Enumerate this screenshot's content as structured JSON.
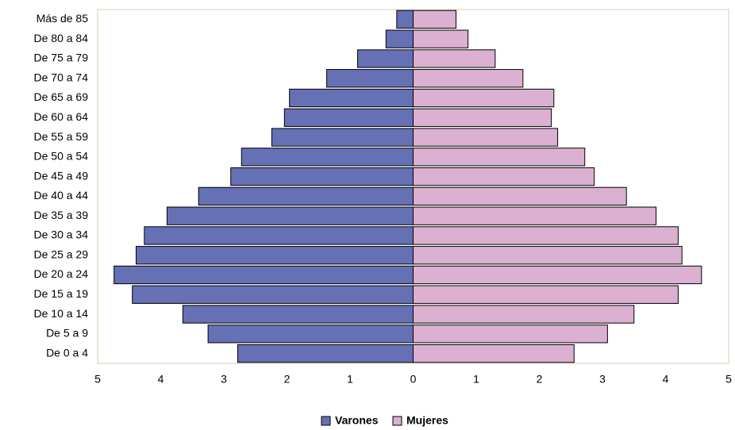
{
  "chart_data": {
    "type": "bar",
    "orientation": "horizontal",
    "categories": [
      "Más de 85",
      "De 80 a 84",
      "De 75 a 79",
      "De 70 a 74",
      "De 65 a 69",
      "De 60 a 64",
      "De 55 a 59",
      "De 50 a 54",
      "De 45 a 49",
      "De 40 a 44",
      "De 35 a 39",
      "De 30 a 34",
      "De 25 a 29",
      "De 20 a 24",
      "De 15 a 19",
      "De 10 a 14",
      "De 5 a 9",
      "De 0 a 4"
    ],
    "series": [
      {
        "name": "Varones",
        "color": "#6670b5",
        "values": [
          -0.26,
          -0.43,
          -0.88,
          -1.37,
          -1.96,
          -2.04,
          -2.24,
          -2.72,
          -2.89,
          -3.4,
          -3.9,
          -4.26,
          -4.39,
          -4.74,
          -4.45,
          -3.65,
          -3.25,
          -2.78
        ]
      },
      {
        "name": "Mujeres",
        "color": "#dbb0d0",
        "values": [
          0.68,
          0.87,
          1.3,
          1.74,
          2.23,
          2.19,
          2.29,
          2.72,
          2.87,
          3.38,
          3.85,
          4.2,
          4.26,
          4.57,
          4.2,
          3.5,
          3.08,
          2.55
        ]
      }
    ],
    "xlim": [
      -5,
      5
    ],
    "xticks": [
      {
        "value": -5,
        "label": "5"
      },
      {
        "value": -4,
        "label": "4"
      },
      {
        "value": -3,
        "label": "3"
      },
      {
        "value": -2,
        "label": "2"
      },
      {
        "value": -1,
        "label": "1"
      },
      0,
      1,
      2,
      3,
      4,
      5
    ],
    "grid": false,
    "legend": "bottom"
  }
}
